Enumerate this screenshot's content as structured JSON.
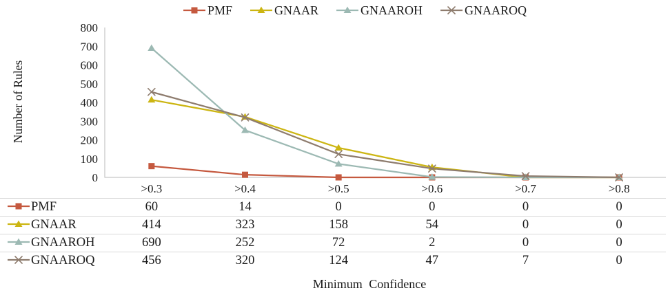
{
  "chart_data": {
    "type": "line",
    "title": "",
    "xlabel": "Minimum Confidence",
    "ylabel": "Number of Rules",
    "categories": [
      ">0.3",
      ">0.4",
      ">0.5",
      ">0.6",
      ">0.7",
      ">0.8"
    ],
    "series": [
      {
        "name": "PMF",
        "marker": "square",
        "color": "#C5593F",
        "values": [
          60,
          14,
          0,
          0,
          0,
          0
        ]
      },
      {
        "name": "GNAAR",
        "marker": "triangle",
        "color": "#CCB512",
        "values": [
          414,
          323,
          158,
          54,
          0,
          0
        ]
      },
      {
        "name": "GNAAROH",
        "marker": "triangle",
        "color": "#9CB9B3",
        "values": [
          690,
          252,
          72,
          2,
          0,
          0
        ]
      },
      {
        "name": "GNAAROQ",
        "marker": "x",
        "color": "#8E7C6E",
        "values": [
          456,
          320,
          124,
          47,
          7,
          0
        ]
      }
    ],
    "ylim": [
      0,
      800
    ],
    "ytick_step": 100,
    "grid": false,
    "legend_position": "top",
    "axis_color": "#C6C6C6",
    "text_color": "#1a1a1a",
    "table_divider_color": "#D9D9D9"
  }
}
